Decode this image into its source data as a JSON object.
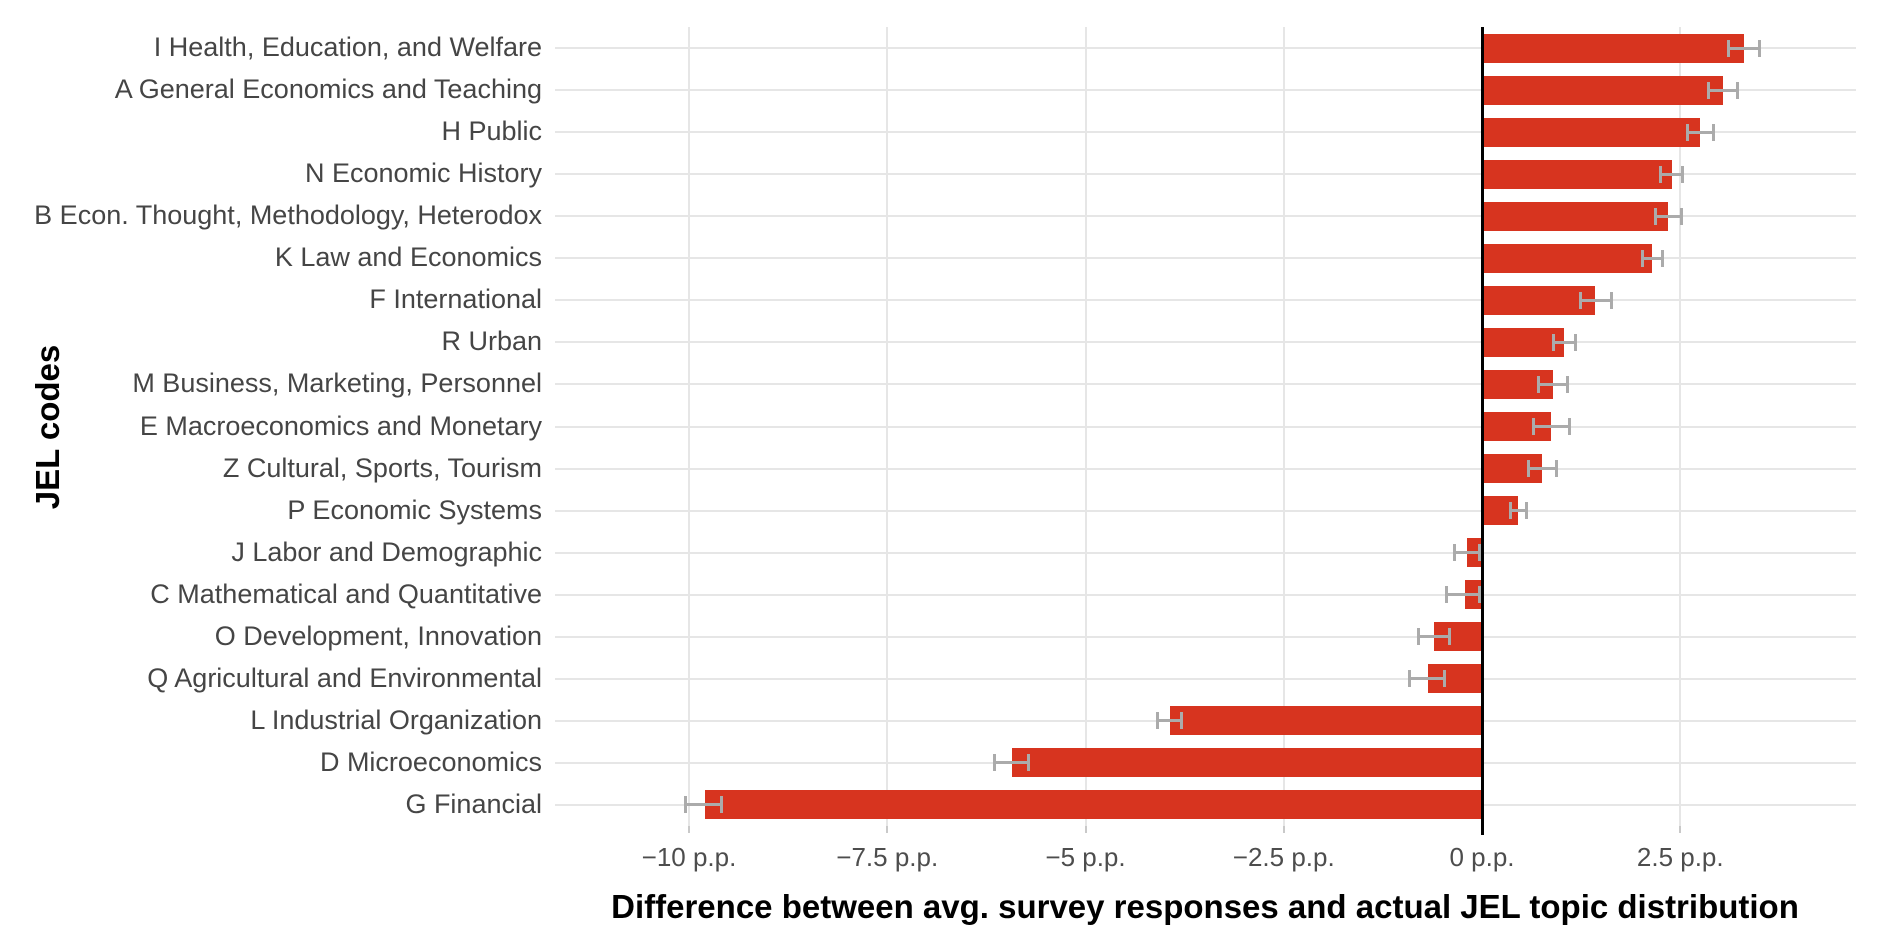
{
  "figure": {
    "background": "#ffffff",
    "bar_color": "#d7341f",
    "error_color": "#ababab",
    "gridline_color": "#e6e6e6",
    "zero_line_color": "#000000",
    "tick_label_color": "#4d4d4d",
    "category_label_color": "#454545",
    "title_color": "#000000"
  },
  "chart_data": {
    "type": "bar",
    "orientation": "horizontal",
    "title": "",
    "xlabel": "Difference between avg. survey responses and actual JEL topic distribution",
    "ylabel": "JEL codes",
    "unit": "p.p.",
    "xlim": [
      -11.7,
      4.7
    ],
    "grid": true,
    "legend": false,
    "x_ticks": [
      {
        "value": -10,
        "label": "−10 p.p."
      },
      {
        "value": -7.5,
        "label": "−7.5 p.p."
      },
      {
        "value": -5,
        "label": "−5 p.p."
      },
      {
        "value": -2.5,
        "label": "−2.5 p.p."
      },
      {
        "value": 0,
        "label": "0 p.p."
      },
      {
        "value": 2.5,
        "label": "2.5 p.p."
      }
    ],
    "categories": [
      "I Health, Education, and Welfare",
      "A General Economics and Teaching",
      "H Public",
      "N Economic History",
      "B Econ. Thought, Methodology, Heterodox",
      "K Law and Economics",
      "F International",
      "R Urban",
      "M Business, Marketing, Personnel",
      "E Macroeconomics and Monetary",
      "Z Cultural, Sports, Tourism",
      "P Economic Systems",
      "J Labor and Demographic",
      "C Mathematical and Quantitative",
      "O Development, Innovation",
      "Q Agricultural and Environmental",
      "L Industrial Organization",
      "D Microeconomics",
      "G Financial"
    ],
    "values": [
      3.3,
      3.04,
      2.75,
      2.39,
      2.34,
      2.15,
      1.42,
      1.04,
      0.9,
      0.87,
      0.76,
      0.46,
      -0.19,
      -0.22,
      -0.61,
      -0.68,
      -3.93,
      -5.93,
      -9.8
    ],
    "error_low": [
      3.1,
      2.85,
      2.59,
      2.25,
      2.18,
      2.02,
      1.23,
      0.9,
      0.71,
      0.64,
      0.58,
      0.35,
      -0.35,
      -0.46,
      -0.81,
      -0.92,
      -4.1,
      -6.15,
      -10.05
    ],
    "error_high": [
      3.51,
      3.23,
      2.92,
      2.53,
      2.52,
      2.28,
      1.64,
      1.19,
      1.09,
      1.11,
      0.94,
      0.57,
      -0.03,
      -0.02,
      -0.4,
      -0.47,
      -3.78,
      -5.71,
      -9.58
    ]
  }
}
